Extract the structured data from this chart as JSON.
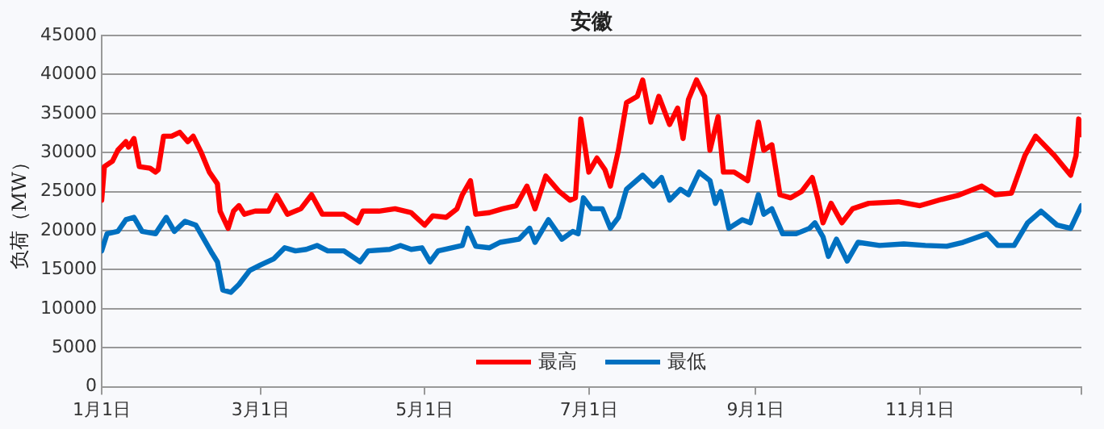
{
  "chart_data": {
    "type": "line",
    "title": "安徽",
    "ylabel": "负荷（MW）",
    "xlim": [
      "--01-01",
      "--12-31"
    ],
    "xticks": [
      {
        "value": "--01-01",
        "label": "1月1日"
      },
      {
        "value": "--03-01",
        "label": "3月1日"
      },
      {
        "value": "--05-01",
        "label": "5月1日"
      },
      {
        "value": "--07-01",
        "label": "7月1日"
      },
      {
        "value": "--09-01",
        "label": "9月1日"
      },
      {
        "value": "--11-01",
        "label": "11月1日"
      },
      {
        "value": "--12-31",
        "label": null
      }
    ],
    "ylim": [
      0,
      45000
    ],
    "yticks": [
      0,
      5000,
      10000,
      15000,
      20000,
      25000,
      30000,
      35000,
      40000,
      45000
    ],
    "grid": "y",
    "legend": "bottom",
    "marker": "none",
    "line_style": "solid",
    "series": [
      {
        "name": "最高",
        "color": "#ff0000",
        "x": [
          "--01-01",
          "--01-02",
          "--01-05",
          "--01-07",
          "--01-10",
          "--01-11",
          "--01-13",
          "--01-15",
          "--01-19",
          "--01-21",
          "--01-22",
          "--01-24",
          "--01-27",
          "--01-30",
          "--02-02",
          "--02-04",
          "--02-07",
          "--02-10",
          "--02-13",
          "--02-14",
          "--02-17",
          "--02-19",
          "--02-21",
          "--02-23",
          "--02-27",
          "--03-04",
          "--03-07",
          "--03-11",
          "--03-16",
          "--03-20",
          "--03-24",
          "--04-01",
          "--04-06",
          "--04-08",
          "--04-14",
          "--04-20",
          "--04-26",
          "--05-01",
          "--05-04",
          "--05-09",
          "--05-13",
          "--05-15",
          "--05-18",
          "--05-20",
          "--05-25",
          "--05-30",
          "--06-04",
          "--06-08",
          "--06-11",
          "--06-15",
          "--06-20",
          "--06-24",
          "--06-26",
          "--06-28",
          "--07-01",
          "--07-04",
          "--07-07",
          "--07-09",
          "--07-12",
          "--07-15",
          "--07-19",
          "--07-21",
          "--07-24",
          "--07-27",
          "--07-31",
          "--08-03",
          "--08-05",
          "--08-07",
          "--08-10",
          "--08-13",
          "--08-15",
          "--08-18",
          "--08-20",
          "--08-24",
          "--08-29",
          "--09-02",
          "--09-04",
          "--09-07",
          "--09-10",
          "--09-14",
          "--09-18",
          "--09-22",
          "--09-24",
          "--09-26",
          "--09-29",
          "--10-03",
          "--10-07",
          "--10-13",
          "--10-24",
          "--11-01",
          "--11-09",
          "--11-15",
          "--11-24",
          "--11-29",
          "--12-05",
          "--12-10",
          "--12-14",
          "--12-21",
          "--12-27",
          "--12-29",
          "--12-30",
          "--12-31"
        ],
        "values": [
          23900,
          28200,
          28900,
          30300,
          31400,
          30700,
          31800,
          28200,
          28000,
          27500,
          27800,
          32100,
          32100,
          32600,
          31400,
          32100,
          30000,
          27500,
          26000,
          22500,
          20300,
          22500,
          23200,
          22100,
          22500,
          22500,
          24500,
          22100,
          22800,
          24600,
          22100,
          22100,
          21000,
          22500,
          22500,
          22800,
          22300,
          20700,
          21900,
          21700,
          22800,
          24600,
          26400,
          22100,
          22300,
          22800,
          23200,
          25700,
          22800,
          27000,
          25000,
          23900,
          24200,
          34300,
          27500,
          29300,
          27800,
          25700,
          30300,
          36400,
          37200,
          39300,
          33900,
          37200,
          33600,
          35700,
          31800,
          36800,
          39300,
          37200,
          30300,
          34600,
          27500,
          27500,
          26400,
          33900,
          30300,
          31000,
          24600,
          24200,
          25000,
          26800,
          24200,
          21000,
          23500,
          21000,
          22800,
          23500,
          23700,
          23200,
          24000,
          24500,
          25700,
          24600,
          24800,
          29600,
          32100,
          29600,
          27100,
          29600,
          34300,
          32300
        ]
      },
      {
        "name": "最低",
        "color": "#0070c0",
        "x": [
          "--01-01",
          "--01-03",
          "--01-07",
          "--01-10",
          "--01-13",
          "--01-16",
          "--01-21",
          "--01-25",
          "--01-28",
          "--02-01",
          "--02-05",
          "--02-08",
          "--02-11",
          "--02-13",
          "--02-15",
          "--02-18",
          "--02-21",
          "--02-25",
          "--03-01",
          "--03-06",
          "--03-10",
          "--03-14",
          "--03-18",
          "--03-22",
          "--03-26",
          "--04-01",
          "--04-07",
          "--04-10",
          "--04-18",
          "--04-22",
          "--04-26",
          "--04-30",
          "--05-03",
          "--05-06",
          "--05-11",
          "--05-15",
          "--05-17",
          "--05-20",
          "--05-25",
          "--05-29",
          "--06-05",
          "--06-09",
          "--06-11",
          "--06-16",
          "--06-21",
          "--06-25",
          "--06-27",
          "--06-29",
          "--07-02",
          "--07-06",
          "--07-09",
          "--07-12",
          "--07-15",
          "--07-21",
          "--07-25",
          "--07-28",
          "--07-31",
          "--08-04",
          "--08-07",
          "--08-11",
          "--08-15",
          "--08-17",
          "--08-19",
          "--08-22",
          "--08-27",
          "--08-30",
          "--09-02",
          "--09-04",
          "--09-07",
          "--09-11",
          "--09-16",
          "--09-21",
          "--09-23",
          "--09-26",
          "--09-28",
          "--10-01",
          "--10-05",
          "--10-09",
          "--10-17",
          "--10-26",
          "--11-03",
          "--11-11",
          "--11-17",
          "--11-26",
          "--11-30",
          "--12-06",
          "--12-11",
          "--12-16",
          "--12-22",
          "--12-27",
          "--12-31"
        ],
        "values": [
          17400,
          19600,
          19900,
          21400,
          21700,
          19900,
          19600,
          21700,
          19900,
          21200,
          20700,
          18900,
          17100,
          16000,
          12400,
          12100,
          13100,
          14900,
          15600,
          16400,
          17800,
          17400,
          17600,
          18100,
          17400,
          17400,
          16000,
          17400,
          17600,
          18100,
          17600,
          17800,
          16000,
          17400,
          17800,
          18100,
          20300,
          18000,
          17800,
          18500,
          18900,
          20300,
          18500,
          21400,
          18900,
          19900,
          19600,
          24200,
          22800,
          22800,
          20300,
          21700,
          25300,
          27100,
          25700,
          26800,
          23900,
          25300,
          24600,
          27500,
          26400,
          23500,
          25000,
          20300,
          21400,
          21000,
          24600,
          22100,
          22800,
          19600,
          19600,
          20300,
          21000,
          19200,
          16700,
          18900,
          16100,
          18500,
          18100,
          18300,
          18100,
          18000,
          18500,
          19600,
          18100,
          18100,
          21000,
          22500,
          20700,
          20300,
          23200
        ]
      }
    ]
  }
}
